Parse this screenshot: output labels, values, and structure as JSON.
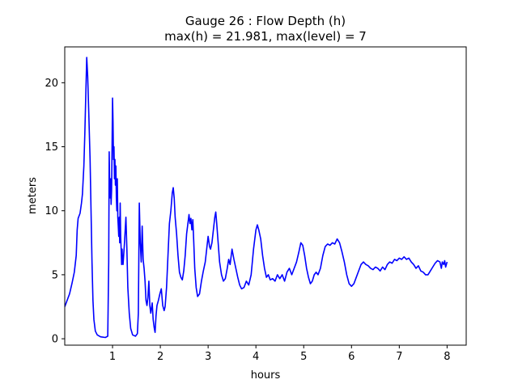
{
  "chart_data": {
    "type": "line",
    "title_lines": [
      "Gauge 26 : Flow Depth (h)",
      "max(h) =  21.981,    max(level) = 7"
    ],
    "xlabel": "hours",
    "ylabel": "meters",
    "xlim": [
      0.0,
      8.4
    ],
    "ylim": [
      -0.5,
      22.8
    ],
    "xticks": [
      1,
      2,
      3,
      4,
      5,
      6,
      7,
      8
    ],
    "yticks": [
      0,
      5,
      10,
      15,
      20
    ],
    "xtick_labels": [
      "1",
      "2",
      "3",
      "4",
      "5",
      "6",
      "7",
      "8"
    ],
    "ytick_labels": [
      "0",
      "5",
      "10",
      "15",
      "20"
    ],
    "grid": false,
    "legend": "none",
    "series": [
      {
        "color": "#0000ff",
        "points": [
          [
            0.0,
            2.5
          ],
          [
            0.05,
            3.0
          ],
          [
            0.1,
            3.5
          ],
          [
            0.15,
            4.3
          ],
          [
            0.2,
            5.2
          ],
          [
            0.24,
            6.5
          ],
          [
            0.26,
            8.5
          ],
          [
            0.28,
            9.4
          ],
          [
            0.32,
            9.8
          ],
          [
            0.35,
            10.6
          ],
          [
            0.37,
            11.3
          ],
          [
            0.4,
            13.5
          ],
          [
            0.42,
            16.0
          ],
          [
            0.44,
            19.0
          ],
          [
            0.46,
            21.98
          ],
          [
            0.48,
            20.5
          ],
          [
            0.5,
            18.0
          ],
          [
            0.53,
            14.0
          ],
          [
            0.55,
            10.0
          ],
          [
            0.57,
            6.0
          ],
          [
            0.59,
            3.0
          ],
          [
            0.61,
            1.5
          ],
          [
            0.64,
            0.6
          ],
          [
            0.68,
            0.3
          ],
          [
            0.75,
            0.15
          ],
          [
            0.85,
            0.1
          ],
          [
            0.9,
            0.2
          ],
          [
            0.92,
            6.0
          ],
          [
            0.93,
            14.6
          ],
          [
            0.94,
            12.0
          ],
          [
            0.95,
            11.0
          ],
          [
            0.96,
            12.5
          ],
          [
            0.97,
            10.5
          ],
          [
            0.98,
            11.6
          ],
          [
            0.99,
            15.0
          ],
          [
            1.0,
            18.8
          ],
          [
            1.01,
            17.0
          ],
          [
            1.02,
            14.0
          ],
          [
            1.03,
            15.0
          ],
          [
            1.04,
            12.5
          ],
          [
            1.05,
            14.0
          ],
          [
            1.06,
            12.0
          ],
          [
            1.07,
            13.5
          ],
          [
            1.08,
            11.0
          ],
          [
            1.09,
            10.0
          ],
          [
            1.1,
            12.5
          ],
          [
            1.11,
            9.5
          ],
          [
            1.12,
            8.8
          ],
          [
            1.13,
            8.0
          ],
          [
            1.14,
            9.5
          ],
          [
            1.15,
            7.5
          ],
          [
            1.16,
            10.6
          ],
          [
            1.17,
            8.0
          ],
          [
            1.18,
            7.0
          ],
          [
            1.19,
            5.8
          ],
          [
            1.2,
            7.0
          ],
          [
            1.21,
            6.0
          ],
          [
            1.22,
            5.8
          ],
          [
            1.25,
            7.5
          ],
          [
            1.28,
            9.5
          ],
          [
            1.3,
            7.0
          ],
          [
            1.32,
            4.0
          ],
          [
            1.35,
            2.0
          ],
          [
            1.38,
            0.8
          ],
          [
            1.42,
            0.3
          ],
          [
            1.48,
            0.2
          ],
          [
            1.52,
            0.4
          ],
          [
            1.54,
            2.0
          ],
          [
            1.56,
            10.6
          ],
          [
            1.58,
            7.5
          ],
          [
            1.6,
            6.0
          ],
          [
            1.62,
            8.8
          ],
          [
            1.64,
            6.2
          ],
          [
            1.66,
            5.5
          ],
          [
            1.68,
            4.5
          ],
          [
            1.7,
            3.0
          ],
          [
            1.72,
            2.6
          ],
          [
            1.74,
            3.2
          ],
          [
            1.76,
            4.5
          ],
          [
            1.78,
            2.6
          ],
          [
            1.8,
            2.0
          ],
          [
            1.83,
            2.8
          ],
          [
            1.85,
            1.5
          ],
          [
            1.87,
            0.9
          ],
          [
            1.89,
            0.5
          ],
          [
            1.91,
            1.8
          ],
          [
            1.93,
            2.6
          ],
          [
            1.96,
            3.0
          ],
          [
            1.99,
            3.5
          ],
          [
            2.02,
            3.9
          ],
          [
            2.05,
            2.6
          ],
          [
            2.08,
            2.2
          ],
          [
            2.1,
            2.5
          ],
          [
            2.13,
            4.0
          ],
          [
            2.16,
            6.5
          ],
          [
            2.19,
            9.0
          ],
          [
            2.22,
            10.0
          ],
          [
            2.25,
            11.4
          ],
          [
            2.27,
            11.8
          ],
          [
            2.29,
            11.0
          ],
          [
            2.31,
            9.5
          ],
          [
            2.34,
            8.2
          ],
          [
            2.37,
            6.5
          ],
          [
            2.4,
            5.2
          ],
          [
            2.43,
            4.8
          ],
          [
            2.46,
            4.6
          ],
          [
            2.49,
            5.3
          ],
          [
            2.52,
            6.5
          ],
          [
            2.55,
            8.2
          ],
          [
            2.58,
            9.1
          ],
          [
            2.6,
            9.7
          ],
          [
            2.62,
            9.0
          ],
          [
            2.64,
            9.4
          ],
          [
            2.66,
            8.5
          ],
          [
            2.68,
            9.3
          ],
          [
            2.7,
            7.5
          ],
          [
            2.72,
            5.5
          ],
          [
            2.75,
            4.0
          ],
          [
            2.78,
            3.3
          ],
          [
            2.82,
            3.5
          ],
          [
            2.86,
            4.5
          ],
          [
            2.9,
            5.3
          ],
          [
            2.94,
            6.0
          ],
          [
            2.97,
            7.0
          ],
          [
            3.0,
            8.0
          ],
          [
            3.03,
            7.2
          ],
          [
            3.05,
            7.0
          ],
          [
            3.08,
            7.5
          ],
          [
            3.11,
            8.5
          ],
          [
            3.14,
            9.5
          ],
          [
            3.16,
            9.9
          ],
          [
            3.18,
            9.0
          ],
          [
            3.21,
            7.5
          ],
          [
            3.24,
            6.0
          ],
          [
            3.28,
            5.0
          ],
          [
            3.32,
            4.5
          ],
          [
            3.36,
            4.7
          ],
          [
            3.4,
            5.5
          ],
          [
            3.43,
            6.2
          ],
          [
            3.46,
            5.8
          ],
          [
            3.5,
            7.0
          ],
          [
            3.54,
            6.2
          ],
          [
            3.58,
            5.5
          ],
          [
            3.62,
            4.8
          ],
          [
            3.66,
            4.2
          ],
          [
            3.7,
            3.9
          ],
          [
            3.75,
            4.0
          ],
          [
            3.8,
            4.5
          ],
          [
            3.85,
            4.2
          ],
          [
            3.9,
            5.0
          ],
          [
            3.95,
            7.0
          ],
          [
            4.0,
            8.5
          ],
          [
            4.03,
            8.9
          ],
          [
            4.06,
            8.5
          ],
          [
            4.1,
            7.8
          ],
          [
            4.14,
            6.5
          ],
          [
            4.18,
            5.5
          ],
          [
            4.22,
            4.8
          ],
          [
            4.26,
            5.0
          ],
          [
            4.3,
            4.6
          ],
          [
            4.35,
            4.7
          ],
          [
            4.4,
            4.5
          ],
          [
            4.45,
            5.0
          ],
          [
            4.5,
            4.7
          ],
          [
            4.55,
            5.0
          ],
          [
            4.6,
            4.5
          ],
          [
            4.65,
            5.2
          ],
          [
            4.7,
            5.5
          ],
          [
            4.75,
            5.0
          ],
          [
            4.8,
            5.5
          ],
          [
            4.85,
            6.0
          ],
          [
            4.9,
            6.8
          ],
          [
            4.94,
            7.5
          ],
          [
            4.98,
            7.3
          ],
          [
            5.02,
            6.5
          ],
          [
            5.06,
            5.5
          ],
          [
            5.1,
            4.8
          ],
          [
            5.14,
            4.3
          ],
          [
            5.18,
            4.5
          ],
          [
            5.22,
            5.0
          ],
          [
            5.26,
            5.2
          ],
          [
            5.3,
            5.0
          ],
          [
            5.35,
            5.5
          ],
          [
            5.4,
            6.5
          ],
          [
            5.45,
            7.2
          ],
          [
            5.5,
            7.4
          ],
          [
            5.55,
            7.3
          ],
          [
            5.6,
            7.5
          ],
          [
            5.65,
            7.4
          ],
          [
            5.7,
            7.8
          ],
          [
            5.75,
            7.5
          ],
          [
            5.8,
            6.8
          ],
          [
            5.85,
            6.0
          ],
          [
            5.9,
            5.0
          ],
          [
            5.95,
            4.3
          ],
          [
            6.0,
            4.1
          ],
          [
            6.05,
            4.3
          ],
          [
            6.1,
            4.8
          ],
          [
            6.15,
            5.3
          ],
          [
            6.2,
            5.8
          ],
          [
            6.25,
            6.0
          ],
          [
            6.3,
            5.8
          ],
          [
            6.35,
            5.7
          ],
          [
            6.4,
            5.5
          ],
          [
            6.45,
            5.4
          ],
          [
            6.5,
            5.6
          ],
          [
            6.55,
            5.5
          ],
          [
            6.6,
            5.3
          ],
          [
            6.65,
            5.6
          ],
          [
            6.7,
            5.4
          ],
          [
            6.75,
            5.8
          ],
          [
            6.8,
            6.0
          ],
          [
            6.85,
            5.9
          ],
          [
            6.9,
            6.2
          ],
          [
            6.95,
            6.1
          ],
          [
            7.0,
            6.3
          ],
          [
            7.05,
            6.2
          ],
          [
            7.1,
            6.4
          ],
          [
            7.15,
            6.2
          ],
          [
            7.2,
            6.3
          ],
          [
            7.25,
            6.0
          ],
          [
            7.3,
            5.8
          ],
          [
            7.35,
            5.5
          ],
          [
            7.4,
            5.7
          ],
          [
            7.45,
            5.3
          ],
          [
            7.5,
            5.2
          ],
          [
            7.55,
            5.0
          ],
          [
            7.6,
            5.0
          ],
          [
            7.65,
            5.3
          ],
          [
            7.7,
            5.6
          ],
          [
            7.75,
            5.9
          ],
          [
            7.8,
            6.1
          ],
          [
            7.85,
            6.0
          ],
          [
            7.88,
            5.5
          ],
          [
            7.9,
            6.0
          ],
          [
            7.93,
            5.8
          ],
          [
            7.95,
            6.1
          ],
          [
            7.97,
            5.6
          ],
          [
            8.0,
            6.0
          ]
        ]
      }
    ]
  }
}
